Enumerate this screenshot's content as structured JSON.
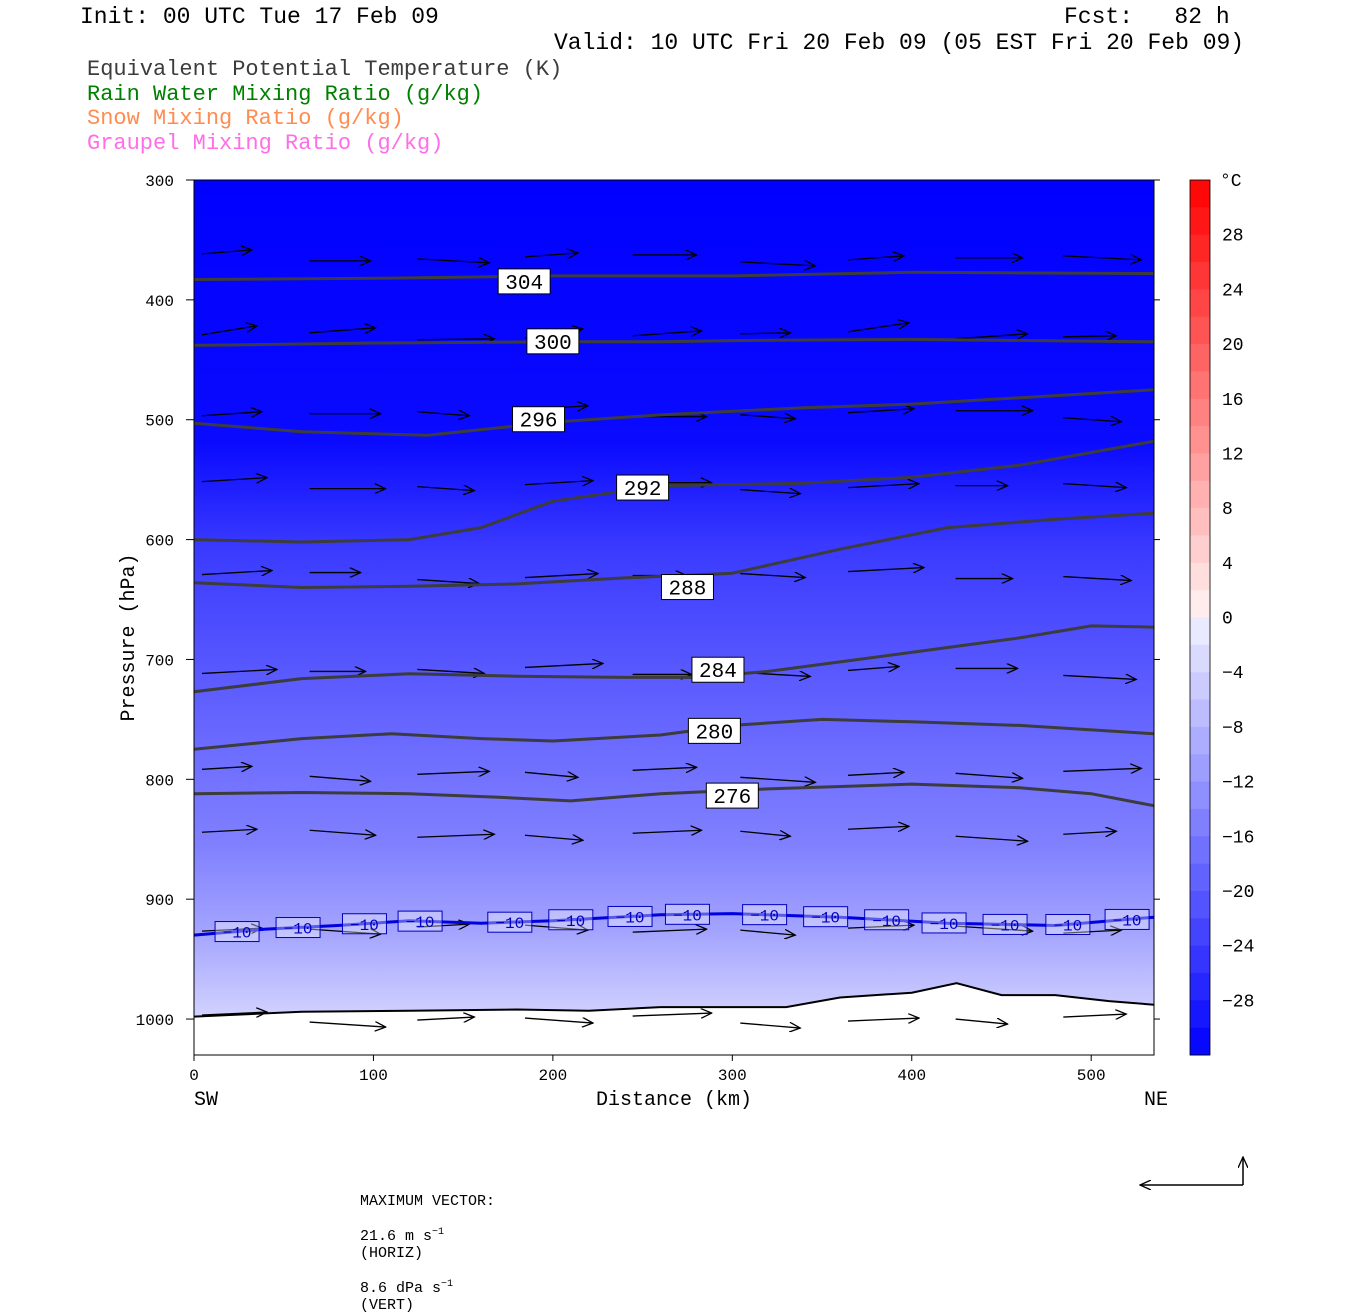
{
  "header": {
    "init": "Init: 00 UTC Tue 17 Feb 09",
    "fcst": "Fcst:   82 h",
    "valid": "Valid: 10 UTC Fri 20 Feb 09 (05 EST Fri 20 Feb 09)"
  },
  "legend": [
    {
      "label": "Equivalent Potential Temperature (K)",
      "color": "#3c3c3c"
    },
    {
      "label": "Rain Water Mixing Ratio (g/kg)",
      "color": "#008000"
    },
    {
      "label": "Snow Mixing Ratio (g/kg)",
      "color": "#ff8c50"
    },
    {
      "label": "Graupel Mixing Ratio (g/kg)",
      "color": "#ff6ee6"
    }
  ],
  "chart_data": {
    "type": "cross-section contour",
    "xlabel": "Distance (km)",
    "ylabel": "Pressure (hPa)",
    "x_ticks": [
      0,
      100,
      200,
      300,
      400,
      500
    ],
    "x_range": [
      0,
      535
    ],
    "y_ticks": [
      300,
      400,
      500,
      600,
      700,
      800,
      900,
      1000
    ],
    "y_range": [
      300,
      1030
    ],
    "left_end_label": "SW",
    "right_end_label": "NE",
    "colorbar": {
      "unit": "°C",
      "labels": [
        28,
        24,
        20,
        16,
        12,
        8,
        4,
        0,
        -4,
        -8,
        -12,
        -16,
        -20,
        -24,
        -28
      ],
      "range": [
        -32,
        32
      ]
    },
    "theta_e_contours": [
      {
        "label": "304",
        "label_at": [
          184,
          385
        ],
        "points": [
          [
            0,
            383
          ],
          [
            100,
            382
          ],
          [
            200,
            380
          ],
          [
            300,
            380
          ],
          [
            400,
            377
          ],
          [
            535,
            378
          ]
        ]
      },
      {
        "label": "300",
        "label_at": [
          200,
          435
        ],
        "points": [
          [
            0,
            438
          ],
          [
            100,
            436
          ],
          [
            200,
            435
          ],
          [
            260,
            435
          ],
          [
            300,
            434
          ],
          [
            400,
            433
          ],
          [
            535,
            435
          ]
        ]
      },
      {
        "label": "296",
        "label_at": [
          192,
          500
        ],
        "points": [
          [
            0,
            503
          ],
          [
            60,
            510
          ],
          [
            130,
            513
          ],
          [
            200,
            502
          ],
          [
            260,
            496
          ],
          [
            340,
            490
          ],
          [
            400,
            487
          ],
          [
            535,
            475
          ]
        ]
      },
      {
        "label": "292",
        "label_at": [
          250,
          557
        ],
        "points": [
          [
            0,
            600
          ],
          [
            60,
            602
          ],
          [
            120,
            600
          ],
          [
            160,
            590
          ],
          [
            200,
            568
          ],
          [
            260,
            555
          ],
          [
            340,
            553
          ],
          [
            400,
            548
          ],
          [
            460,
            538
          ],
          [
            535,
            518
          ]
        ]
      },
      {
        "label": "288",
        "label_at": [
          275,
          640
        ],
        "points": [
          [
            0,
            636
          ],
          [
            60,
            640
          ],
          [
            120,
            639
          ],
          [
            180,
            637
          ],
          [
            240,
            632
          ],
          [
            300,
            628
          ],
          [
            360,
            608
          ],
          [
            420,
            590
          ],
          [
            480,
            583
          ],
          [
            535,
            578
          ]
        ]
      },
      {
        "label": "284",
        "label_at": [
          292,
          709
        ],
        "points": [
          [
            0,
            727
          ],
          [
            60,
            716
          ],
          [
            120,
            712
          ],
          [
            180,
            714
          ],
          [
            240,
            715
          ],
          [
            280,
            715
          ],
          [
            320,
            710
          ],
          [
            380,
            698
          ],
          [
            420,
            690
          ],
          [
            460,
            682
          ],
          [
            500,
            672
          ],
          [
            535,
            673
          ]
        ]
      },
      {
        "label": "280",
        "label_at": [
          290,
          760
        ],
        "points": [
          [
            0,
            775
          ],
          [
            60,
            766
          ],
          [
            110,
            762
          ],
          [
            160,
            766
          ],
          [
            200,
            768
          ],
          [
            260,
            763
          ],
          [
            300,
            755
          ],
          [
            350,
            750
          ],
          [
            400,
            752
          ],
          [
            460,
            755
          ],
          [
            535,
            762
          ]
        ]
      },
      {
        "label": "276",
        "label_at": [
          300,
          814
        ],
        "points": [
          [
            0,
            812
          ],
          [
            60,
            811
          ],
          [
            120,
            812
          ],
          [
            170,
            815
          ],
          [
            210,
            818
          ],
          [
            260,
            812
          ],
          [
            320,
            808
          ],
          [
            400,
            804
          ],
          [
            460,
            807
          ],
          [
            500,
            812
          ],
          [
            535,
            822
          ]
        ]
      }
    ],
    "isotherm_minus10": {
      "label": "−10",
      "points": [
        [
          0,
          930
        ],
        [
          40,
          925
        ],
        [
          80,
          922
        ],
        [
          120,
          918
        ],
        [
          160,
          920
        ],
        [
          200,
          918
        ],
        [
          260,
          913
        ],
        [
          300,
          912
        ],
        [
          360,
          915
        ],
        [
          420,
          920
        ],
        [
          480,
          922
        ],
        [
          535,
          915
        ]
      ],
      "label_xs": [
        24,
        58,
        95,
        126,
        176,
        210,
        243,
        275,
        318,
        352,
        386,
        418,
        452,
        487,
        520
      ]
    },
    "surface": [
      [
        0,
        998
      ],
      [
        60,
        994
      ],
      [
        120,
        993
      ],
      [
        180,
        992
      ],
      [
        220,
        993
      ],
      [
        260,
        990
      ],
      [
        300,
        990
      ],
      [
        330,
        990
      ],
      [
        360,
        982
      ],
      [
        400,
        978
      ],
      [
        425,
        970
      ],
      [
        450,
        980
      ],
      [
        480,
        980
      ],
      [
        510,
        985
      ],
      [
        535,
        988
      ]
    ],
    "max_vector": {
      "label": "MAXIMUM VECTOR:",
      "horiz": "21.6 m s",
      "horiz_exp": "−1",
      "horiz_unit": "(HORIZ)",
      "vert": "8.6 dPa s",
      "vert_exp": "−1",
      "vert_unit": "(VERT)"
    }
  }
}
